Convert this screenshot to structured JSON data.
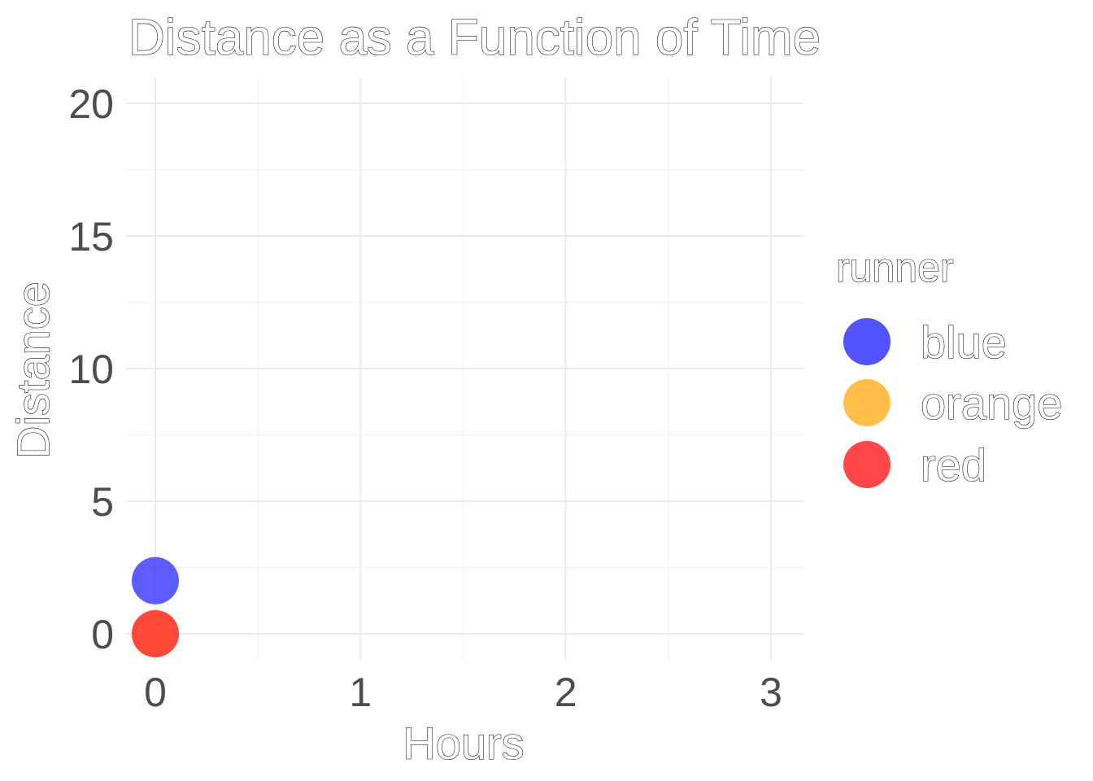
{
  "chart_data": {
    "type": "scatter",
    "title": "Distance as a Function of Time",
    "xlabel": "Hours",
    "ylabel": "Distance",
    "xlim": [
      0,
      3
    ],
    "ylim": [
      0,
      20
    ],
    "x_ticks": [
      0,
      1,
      2,
      3
    ],
    "y_ticks": [
      0,
      5,
      10,
      15,
      20
    ],
    "grid": true,
    "legend": {
      "title": "runner",
      "position": "right",
      "entries": [
        {
          "label": "blue",
          "color": "#4040ff"
        },
        {
          "label": "orange",
          "color": "#ffb733"
        },
        {
          "label": "red",
          "color": "#ff3333"
        }
      ]
    },
    "series": [
      {
        "name": "blue",
        "color": "#4040ff",
        "points": [
          {
            "x": 0,
            "y": 2
          }
        ]
      },
      {
        "name": "orange",
        "color": "#ffb733",
        "points": [
          {
            "x": 0,
            "y": 0
          }
        ]
      },
      {
        "name": "red",
        "color": "#ff3333",
        "points": [
          {
            "x": 0,
            "y": 0
          }
        ]
      }
    ]
  }
}
